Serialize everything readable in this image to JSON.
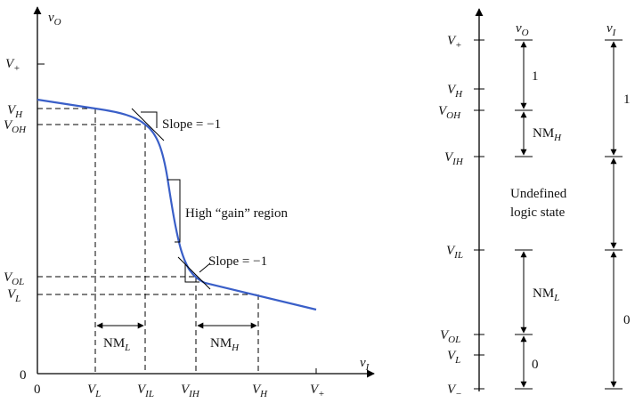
{
  "left": {
    "y_axis": {
      "var": "v",
      "sub": "O"
    },
    "x_axis": {
      "var": "v",
      "sub": "I"
    },
    "y_ticks": [
      {
        "id": "vplus",
        "main": "V",
        "sub": "+"
      },
      {
        "id": "vh",
        "main": "V",
        "sub": "H"
      },
      {
        "id": "voh",
        "main": "V",
        "sub": "OH"
      },
      {
        "id": "vol",
        "main": "V",
        "sub": "OL"
      },
      {
        "id": "vl",
        "main": "V",
        "sub": "L"
      },
      {
        "id": "zero",
        "main": "0",
        "sub": ""
      }
    ],
    "x_ticks": [
      {
        "id": "zero",
        "main": "0",
        "sub": ""
      },
      {
        "id": "vl",
        "main": "V",
        "sub": "L"
      },
      {
        "id": "vil",
        "main": "V",
        "sub": "IL"
      },
      {
        "id": "vih",
        "main": "V",
        "sub": "IH"
      },
      {
        "id": "vh",
        "main": "V",
        "sub": "H"
      },
      {
        "id": "vplus",
        "main": "V",
        "sub": "+"
      }
    ],
    "annotations": {
      "slope_upper": "Slope = −1",
      "slope_lower": "Slope = −1",
      "gain_region": "High “gain” region"
    },
    "margins": {
      "nml": {
        "main": "NM",
        "sub": "L"
      },
      "nmh": {
        "main": "NM",
        "sub": "H"
      }
    }
  },
  "right": {
    "ticks": [
      {
        "id": "vplus",
        "main": "V",
        "sub": "+"
      },
      {
        "id": "vh",
        "main": "V",
        "sub": "H"
      },
      {
        "id": "voh",
        "main": "V",
        "sub": "OH"
      },
      {
        "id": "vih",
        "main": "V",
        "sub": "IH"
      },
      {
        "id": "vil",
        "main": "V",
        "sub": "IL"
      },
      {
        "id": "vol",
        "main": "V",
        "sub": "OL"
      },
      {
        "id": "vl",
        "main": "V",
        "sub": "L"
      },
      {
        "id": "vminus",
        "main": "V",
        "sub": "−"
      }
    ],
    "col_vo": {
      "var": "v",
      "sub": "O"
    },
    "col_vi": {
      "var": "v",
      "sub": "I"
    },
    "vo_one": "1",
    "vo_zero": "0",
    "vi_one": "1",
    "vi_zero": "0",
    "nmh": {
      "main": "NM",
      "sub": "H"
    },
    "nml": {
      "main": "NM",
      "sub": "L"
    },
    "undefined_line1": "Undefined",
    "undefined_line2": "logic state"
  }
}
